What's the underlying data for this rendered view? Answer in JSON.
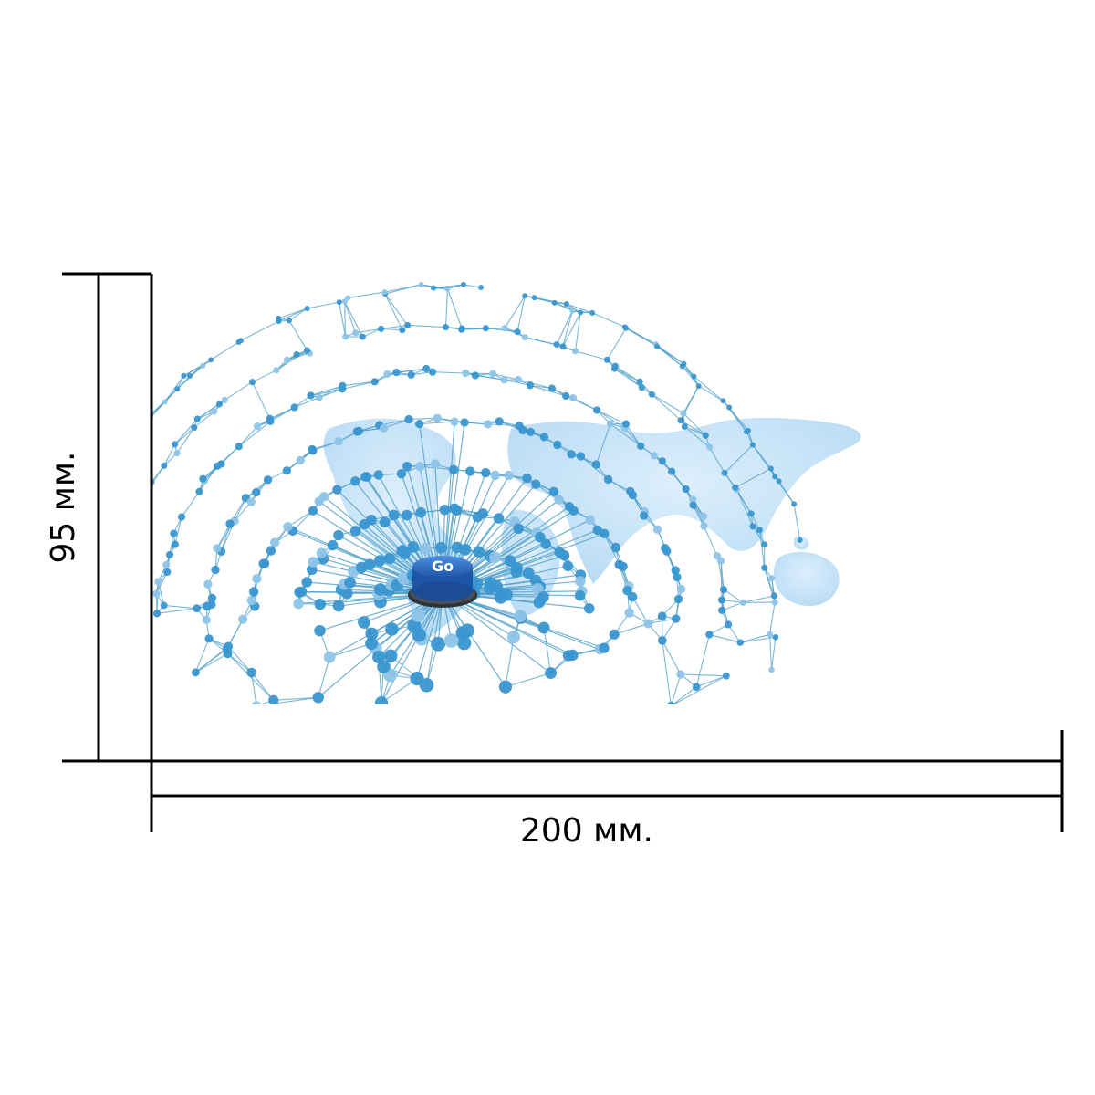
{
  "product": {
    "button_label": "Go"
  },
  "dimensions": {
    "width_label": "200 мм.",
    "height_label": "95 мм."
  },
  "colors": {
    "node": "#3a96d0",
    "node_light": "#8ec4e8",
    "line": "#4f9fc8",
    "map": "#bfe0f7",
    "button_top": "#2f6fc5",
    "button_base": "#444a52",
    "dimension_line": "#000000"
  }
}
